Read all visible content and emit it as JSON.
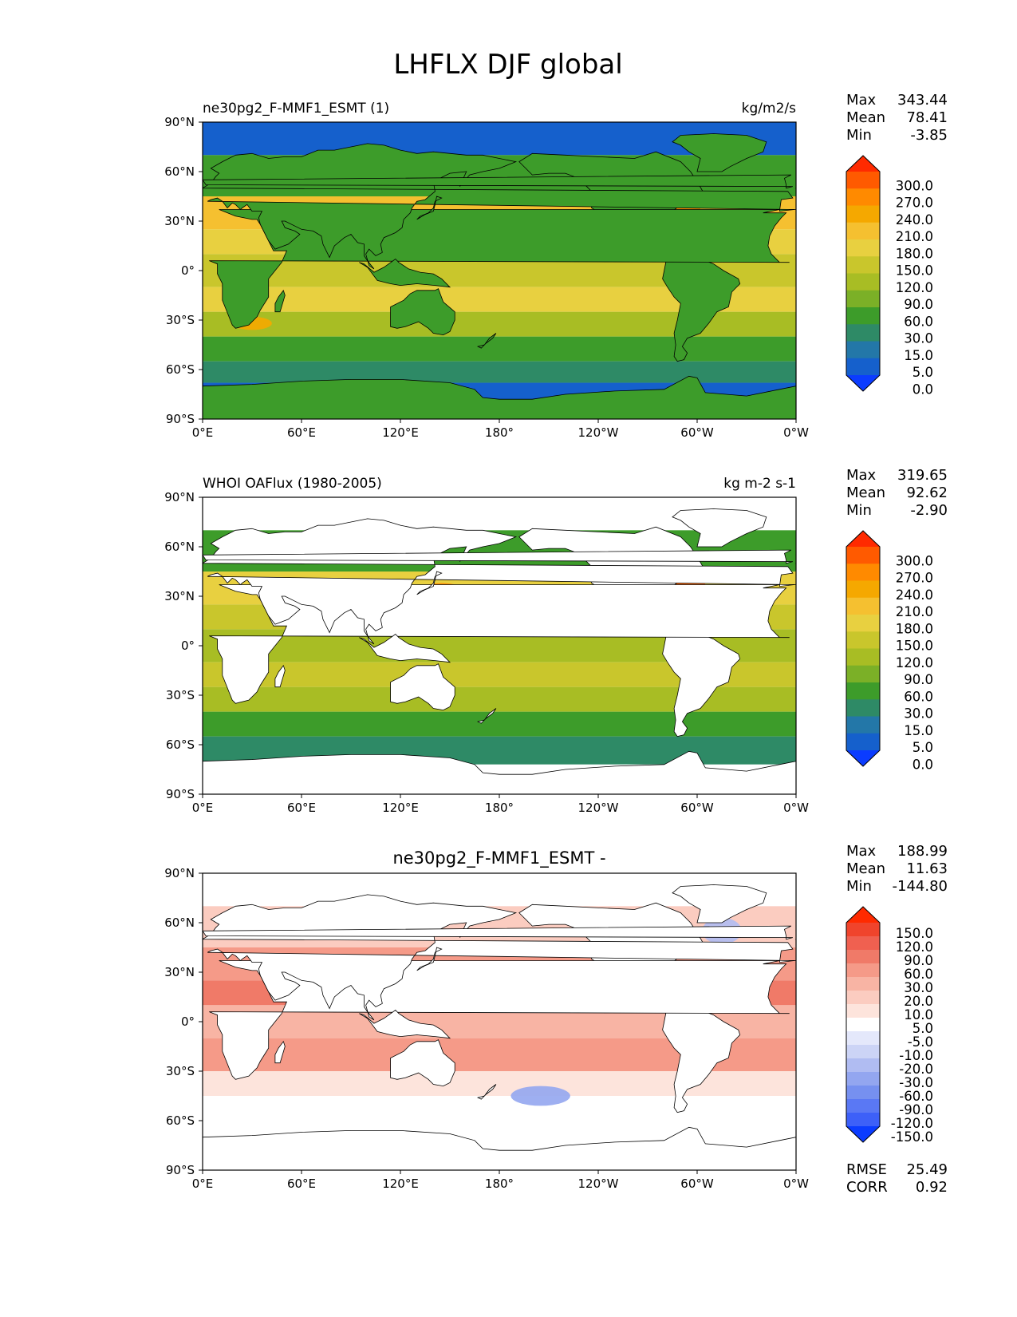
{
  "figure": {
    "title": "LHFLX DJF global",
    "lat_ticks": [
      "90°N",
      "60°N",
      "30°N",
      "0°",
      "30°S",
      "60°S",
      "90°S"
    ],
    "lon_ticks": [
      "0°E",
      "60°E",
      "120°E",
      "180°",
      "120°W",
      "60°W",
      "0°W"
    ]
  },
  "panels": [
    {
      "title_left": "ne30pg2_F-MMF1_ESMT (1)",
      "title_right": "kg/m2/s",
      "title_center": "",
      "stats": [
        {
          "label": "Max",
          "value": "343.44"
        },
        {
          "label": "Mean",
          "value": "78.41"
        },
        {
          "label": "Min",
          "value": "-3.85"
        }
      ],
      "extra_stats": [],
      "map_style": "model",
      "colorbar": {
        "labels": [
          "300.0",
          "270.0",
          "240.0",
          "210.0",
          "180.0",
          "150.0",
          "120.0",
          "90.0",
          "60.0",
          "30.0",
          "15.0",
          "5.0",
          "0.0"
        ],
        "colors": [
          "#ff2a00",
          "#ff5a00",
          "#ff8a00",
          "#f5a800",
          "#f5c030",
          "#e8d040",
          "#c9c62c",
          "#a8bd24",
          "#7bb027",
          "#3d9c2a",
          "#2e8a66",
          "#2377a8",
          "#1560cc",
          "#0b3cff"
        ]
      }
    },
    {
      "title_left": "WHOI OAFlux (1980-2005)",
      "title_right": "kg m-2 s-1",
      "title_center": "",
      "stats": [
        {
          "label": "Max",
          "value": "319.65"
        },
        {
          "label": "Mean",
          "value": "92.62"
        },
        {
          "label": "Min",
          "value": "-2.90"
        }
      ],
      "extra_stats": [],
      "map_style": "obs",
      "colorbar": {
        "labels": [
          "300.0",
          "270.0",
          "240.0",
          "210.0",
          "180.0",
          "150.0",
          "120.0",
          "90.0",
          "60.0",
          "30.0",
          "15.0",
          "5.0",
          "0.0"
        ],
        "colors": [
          "#ff2a00",
          "#ff5a00",
          "#ff8a00",
          "#f5a800",
          "#f5c030",
          "#e8d040",
          "#c9c62c",
          "#a8bd24",
          "#7bb027",
          "#3d9c2a",
          "#2e8a66",
          "#2377a8",
          "#1560cc",
          "#0b3cff"
        ]
      }
    },
    {
      "title_left": "",
      "title_right": "",
      "title_center": "ne30pg2_F-MMF1_ESMT -",
      "stats": [
        {
          "label": "Max",
          "value": "188.99"
        },
        {
          "label": "Mean",
          "value": "11.63"
        },
        {
          "label": "Min",
          "value": "-144.80"
        }
      ],
      "extra_stats": [
        {
          "label": "RMSE",
          "value": "25.49"
        },
        {
          "label": "CORR",
          "value": "0.92"
        }
      ],
      "map_style": "diff",
      "colorbar": {
        "labels": [
          "150.0",
          "120.0",
          "90.0",
          "60.0",
          "30.0",
          "20.0",
          "10.0",
          "5.0",
          "-5.0",
          "-10.0",
          "-20.0",
          "-30.0",
          "-60.0",
          "-90.0",
          "-120.0",
          "-150.0"
        ],
        "colors": [
          "#ff2a00",
          "#f0442c",
          "#f06050",
          "#f07a68",
          "#f59a88",
          "#f8b4a4",
          "#fbccc0",
          "#fde4dc",
          "#ffffff",
          "#e4e8fb",
          "#ccd4f6",
          "#b0bcf2",
          "#93a6f0",
          "#7690f0",
          "#5a78f4",
          "#3d60f8",
          "#0b3cff"
        ]
      }
    }
  ],
  "colors": {
    "ocean_low": "#1560cc",
    "land_model": "#3d9c2a",
    "land_obs": "#ffffff",
    "diff_positive": "#f07a68",
    "diff_negative": "#7690f0"
  }
}
